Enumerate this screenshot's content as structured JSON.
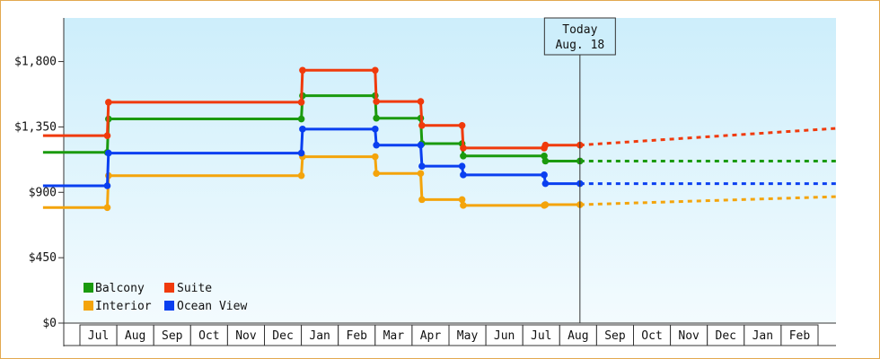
{
  "chart_data": {
    "type": "line",
    "style": "step",
    "y_ticks": [
      "$0",
      "$450",
      "$900",
      "$1,350",
      "$1,800"
    ],
    "ylim": [
      0,
      2100
    ],
    "x_months": [
      "Jul",
      "Aug",
      "Sep",
      "Oct",
      "Nov",
      "Dec",
      "Jan",
      "Feb",
      "Mar",
      "Apr",
      "May",
      "Jun",
      "Jul",
      "Aug",
      "Sep",
      "Oct",
      "Nov",
      "Dec",
      "Jan",
      "Feb"
    ],
    "today_marker": {
      "line1": "Today",
      "line2": "Aug. 18"
    },
    "legend": {
      "placement": "bottom-left"
    },
    "grid": false,
    "series": [
      {
        "name": "Balcony",
        "color": "#1a9a0e",
        "points": [
          {
            "date": "2023-06-01",
            "value": 1175
          },
          {
            "date": "2023-07-24",
            "value": 1175
          },
          {
            "date": "2023-07-25",
            "value": 1405
          },
          {
            "date": "2024-01-01",
            "value": 1405
          },
          {
            "date": "2024-01-02",
            "value": 1565
          },
          {
            "date": "2024-03-01",
            "value": 1565
          },
          {
            "date": "2024-03-02",
            "value": 1410
          },
          {
            "date": "2024-04-08",
            "value": 1410
          },
          {
            "date": "2024-04-09",
            "value": 1235
          },
          {
            "date": "2024-05-12",
            "value": 1235
          },
          {
            "date": "2024-05-13",
            "value": 1150
          },
          {
            "date": "2024-07-19",
            "value": 1150
          },
          {
            "date": "2024-07-20",
            "value": 1115
          },
          {
            "date": "2024-08-18",
            "value": 1115
          }
        ],
        "projection": [
          {
            "date": "2024-08-18",
            "value": 1115
          },
          {
            "date": "2025-03-01",
            "value": 1115
          }
        ]
      },
      {
        "name": "Suite",
        "color": "#f03a0c",
        "points": [
          {
            "date": "2023-06-01",
            "value": 1290
          },
          {
            "date": "2023-07-24",
            "value": 1290
          },
          {
            "date": "2023-07-25",
            "value": 1520
          },
          {
            "date": "2024-01-01",
            "value": 1520
          },
          {
            "date": "2024-01-02",
            "value": 1740
          },
          {
            "date": "2024-03-01",
            "value": 1740
          },
          {
            "date": "2024-03-02",
            "value": 1525
          },
          {
            "date": "2024-04-08",
            "value": 1525
          },
          {
            "date": "2024-04-09",
            "value": 1360
          },
          {
            "date": "2024-05-12",
            "value": 1360
          },
          {
            "date": "2024-05-13",
            "value": 1205
          },
          {
            "date": "2024-07-19",
            "value": 1205
          },
          {
            "date": "2024-07-20",
            "value": 1225
          },
          {
            "date": "2024-08-18",
            "value": 1225
          }
        ],
        "projection": [
          {
            "date": "2024-08-18",
            "value": 1225
          },
          {
            "date": "2025-03-01",
            "value": 1340
          }
        ]
      },
      {
        "name": "Interior",
        "color": "#f4a40b",
        "points": [
          {
            "date": "2023-06-01",
            "value": 795
          },
          {
            "date": "2023-07-24",
            "value": 795
          },
          {
            "date": "2023-07-25",
            "value": 1015
          },
          {
            "date": "2024-01-01",
            "value": 1015
          },
          {
            "date": "2024-01-02",
            "value": 1145
          },
          {
            "date": "2024-03-01",
            "value": 1145
          },
          {
            "date": "2024-03-02",
            "value": 1030
          },
          {
            "date": "2024-04-08",
            "value": 1030
          },
          {
            "date": "2024-04-09",
            "value": 850
          },
          {
            "date": "2024-05-12",
            "value": 850
          },
          {
            "date": "2024-05-13",
            "value": 810
          },
          {
            "date": "2024-07-19",
            "value": 810
          },
          {
            "date": "2024-07-20",
            "value": 815
          },
          {
            "date": "2024-08-18",
            "value": 815
          }
        ],
        "projection": [
          {
            "date": "2024-08-18",
            "value": 815
          },
          {
            "date": "2025-03-01",
            "value": 870
          }
        ]
      },
      {
        "name": "Ocean View",
        "color": "#0a3ff0",
        "points": [
          {
            "date": "2023-06-01",
            "value": 945
          },
          {
            "date": "2023-07-24",
            "value": 945
          },
          {
            "date": "2023-07-25",
            "value": 1170
          },
          {
            "date": "2024-01-01",
            "value": 1170
          },
          {
            "date": "2024-01-02",
            "value": 1335
          },
          {
            "date": "2024-03-01",
            "value": 1335
          },
          {
            "date": "2024-03-02",
            "value": 1225
          },
          {
            "date": "2024-04-08",
            "value": 1225
          },
          {
            "date": "2024-04-09",
            "value": 1080
          },
          {
            "date": "2024-05-12",
            "value": 1080
          },
          {
            "date": "2024-05-13",
            "value": 1020
          },
          {
            "date": "2024-07-19",
            "value": 1020
          },
          {
            "date": "2024-07-20",
            "value": 960
          },
          {
            "date": "2024-08-18",
            "value": 960
          }
        ],
        "projection": [
          {
            "date": "2024-08-18",
            "value": 960
          },
          {
            "date": "2025-03-01",
            "value": 960
          }
        ]
      }
    ]
  }
}
